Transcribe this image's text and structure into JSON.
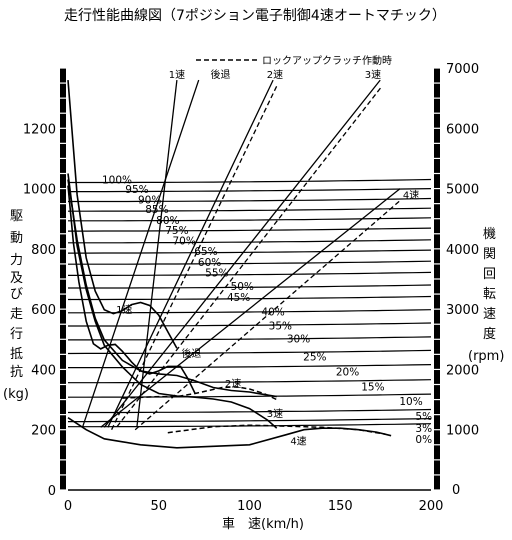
{
  "chart_data": {
    "type": "line",
    "title": "走行性能曲線図（7ポジション電子制御4速オートマチック）",
    "xlabel": "車　速(km/h)",
    "ylabel_left": [
      "駆",
      "動",
      "力",
      "及",
      "び",
      "走",
      "行",
      "抵",
      "抗",
      "(kg)"
    ],
    "ylabel_right": [
      "機",
      "関",
      "回",
      "転",
      "速",
      "度",
      "(rpm)"
    ],
    "xlim": [
      0,
      200
    ],
    "ylim_left": [
      0,
      1400
    ],
    "ylim_right": [
      0,
      7000
    ],
    "x_ticks": [
      "0",
      "50",
      "100",
      "150",
      "200"
    ],
    "y_ticks_left": [
      "0",
      "200",
      "400",
      "600",
      "800",
      "1000",
      "1200"
    ],
    "y_ticks_right": [
      "1000",
      "2000",
      "3000",
      "4000",
      "5000",
      "6000",
      "7000"
    ],
    "legend": "ロックアップクラッチ作動時",
    "gear_labels": [
      "1速",
      "後退",
      "2速",
      "3速",
      "4速"
    ],
    "gear_labels_inner": [
      "1速",
      "後退",
      "2速",
      "3速",
      "4速"
    ],
    "resistance_labels": [
      "100%",
      "95%",
      "90%",
      "85%",
      "80%",
      "75%",
      "70%",
      "65%",
      "60%",
      "55%",
      "50%",
      "45%",
      "40%",
      "35%",
      "30%",
      "25%",
      "20%",
      "15%",
      "10%",
      "5%",
      "3%",
      "0%"
    ],
    "grade_percent": [
      100,
      95,
      90,
      85,
      80,
      75,
      70,
      65,
      60,
      55,
      50,
      45,
      40,
      35,
      30,
      25,
      20,
      15,
      10,
      5,
      3,
      0
    ],
    "resistance_kg_at_0": [
      1020,
      990,
      957,
      925,
      893,
      859,
      820,
      786,
      749,
      712,
      670,
      632,
      588,
      544,
      498,
      453,
      406,
      356,
      308,
      257,
      227,
      210
    ],
    "rpm_lines": [
      {
        "name": "1速",
        "points": [
          [
            38,
            1060
          ],
          [
            60,
            6800
          ]
        ]
      },
      {
        "name": "後退",
        "points": [
          [
            8,
            1040
          ],
          [
            72,
            6800
          ]
        ]
      },
      {
        "name": "2速",
        "points": [
          [
            22,
            1040
          ],
          [
            113,
            6800
          ]
        ]
      },
      {
        "name": "3速",
        "points": [
          [
            20,
            1040
          ],
          [
            172,
            6800
          ]
        ]
      },
      {
        "name": "4速",
        "points": [
          [
            18,
            1040
          ],
          [
            183,
            5000
          ]
        ]
      }
    ],
    "lockup_lines": [
      {
        "name": "2速",
        "points": [
          [
            24,
            1000
          ],
          [
            115,
            6700
          ]
        ]
      },
      {
        "name": "3速",
        "points": [
          [
            27,
            1050
          ],
          [
            173,
            6700
          ]
        ]
      },
      {
        "name": "4速",
        "points": [
          [
            37,
            1000
          ],
          [
            183,
            4800
          ]
        ]
      }
    ],
    "tractive_force": [
      {
        "name": "1速",
        "points": [
          [
            0,
            1360
          ],
          [
            5,
            980
          ],
          [
            10,
            770
          ],
          [
            15,
            660
          ],
          [
            20,
            598
          ],
          [
            25,
            585
          ],
          [
            30,
            595
          ],
          [
            35,
            615
          ],
          [
            40,
            622
          ],
          [
            45,
            612
          ],
          [
            50,
            580
          ],
          [
            55,
            525
          ],
          [
            60,
            470
          ]
        ]
      },
      {
        "name": "後退",
        "points": [
          [
            0,
            1010
          ],
          [
            3,
            820
          ],
          [
            6,
            690
          ],
          [
            10,
            560
          ],
          [
            14,
            485
          ],
          [
            18,
            468
          ],
          [
            22,
            480
          ],
          [
            26,
            483
          ],
          [
            30,
            460
          ],
          [
            35,
            425
          ],
          [
            40,
            395
          ],
          [
            45,
            385
          ],
          [
            50,
            395
          ],
          [
            55,
            410
          ],
          [
            62,
            410
          ],
          [
            66,
            370
          ],
          [
            70,
            320
          ]
        ]
      },
      {
        "name": "2速",
        "points": [
          [
            0,
            1030
          ],
          [
            5,
            830
          ],
          [
            10,
            680
          ],
          [
            15,
            570
          ],
          [
            20,
            498
          ],
          [
            30,
            430
          ],
          [
            40,
            395
          ],
          [
            50,
            385
          ],
          [
            60,
            380
          ],
          [
            70,
            362
          ],
          [
            80,
            340
          ],
          [
            90,
            330
          ],
          [
            100,
            325
          ],
          [
            110,
            315
          ],
          [
            115,
            310
          ]
        ]
      },
      {
        "name": "3速",
        "points": [
          [
            0,
            1050
          ],
          [
            5,
            810
          ],
          [
            10,
            665
          ],
          [
            15,
            560
          ],
          [
            20,
            480
          ],
          [
            30,
            408
          ],
          [
            40,
            350
          ],
          [
            50,
            320
          ],
          [
            60,
            312
          ],
          [
            70,
            308
          ],
          [
            80,
            302
          ],
          [
            90,
            292
          ],
          [
            100,
            270
          ],
          [
            110,
            232
          ],
          [
            115,
            205
          ]
        ]
      },
      {
        "name": "4速",
        "points": [
          [
            0,
            240
          ],
          [
            10,
            200
          ],
          [
            20,
            170
          ],
          [
            30,
            160
          ],
          [
            40,
            150
          ],
          [
            60,
            140
          ],
          [
            80,
            145
          ],
          [
            100,
            150
          ],
          [
            120,
            183
          ],
          [
            130,
            200
          ],
          [
            140,
            205
          ],
          [
            150,
            205
          ],
          [
            160,
            200
          ],
          [
            170,
            192
          ],
          [
            178,
            180
          ]
        ]
      }
    ],
    "lockup_force": [
      {
        "name": "2速",
        "points": [
          [
            30,
            305
          ],
          [
            50,
            310
          ],
          [
            60,
            310
          ],
          [
            70,
            320
          ],
          [
            85,
            340
          ],
          [
            93,
            342
          ],
          [
            100,
            335
          ],
          [
            108,
            320
          ],
          [
            115,
            300
          ]
        ]
      },
      {
        "name": "3速",
        "points": [
          [
            55,
            190
          ],
          [
            80,
            210
          ],
          [
            100,
            215
          ],
          [
            120,
            212
          ],
          [
            140,
            208
          ],
          [
            160,
            200
          ],
          [
            175,
            185
          ]
        ]
      }
    ]
  }
}
